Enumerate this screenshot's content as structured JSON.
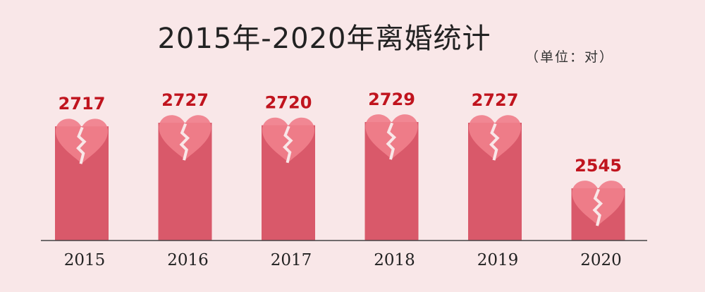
{
  "chart_data": {
    "type": "bar",
    "title": "2015年-2020年离婚统计",
    "unit_label": "（单位：对）",
    "categories": [
      "2015",
      "2016",
      "2017",
      "2018",
      "2019",
      "2020"
    ],
    "values": [
      2717,
      2727,
      2720,
      2729,
      2727,
      2545
    ],
    "value_labels": [
      "2717",
      "2727",
      "2720",
      "2729",
      "2727",
      "2545"
    ],
    "xlabel": "",
    "ylabel": "",
    "bar_color": "#d9596a",
    "heart_color": "#f07f8b",
    "value_label_color": "#c0141e",
    "heart_icon": "broken-heart-icon",
    "grid": false,
    "legend": "none"
  }
}
